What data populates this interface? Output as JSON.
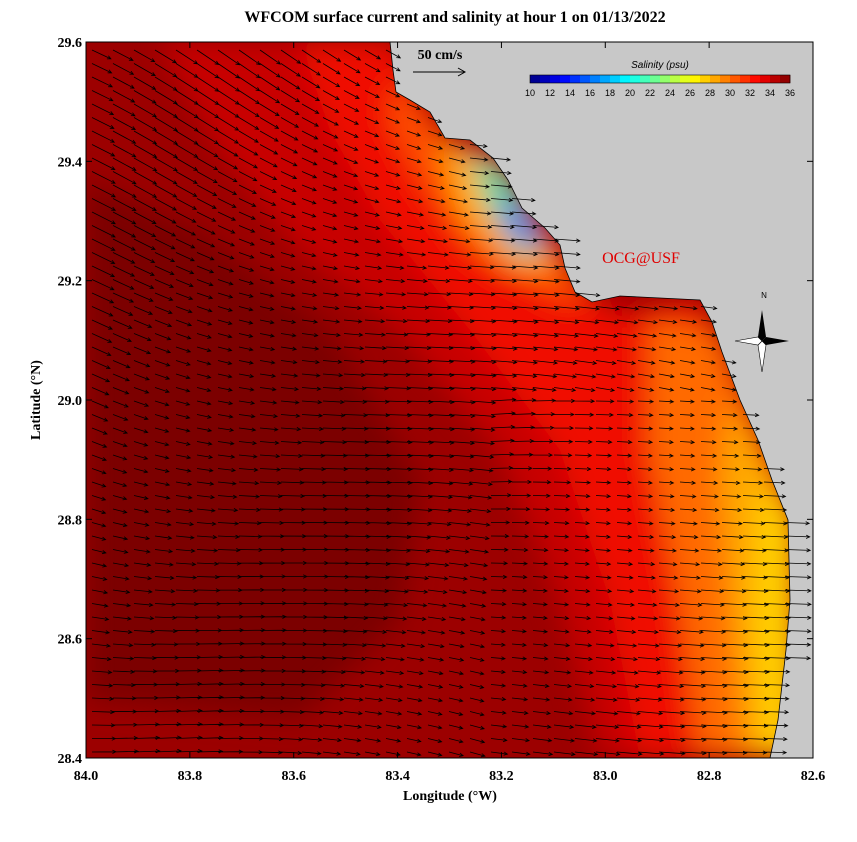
{
  "title": "WFCOM surface current and salinity at hour 1 on 01/13/2022",
  "x_label": "Longitude (°W)",
  "y_label": "Latitude (°N)",
  "xlim": [
    84.0,
    82.6
  ],
  "ylim": [
    28.4,
    29.6
  ],
  "xticks": [
    {
      "value": 84,
      "label": "84.0"
    },
    83.8,
    83.6,
    83.4,
    83.2,
    {
      "value": 83,
      "label": "83.0"
    },
    82.8,
    82.6
  ],
  "yticks": [
    28.4,
    28.6,
    28.8,
    {
      "value": 29,
      "label": "29.0"
    },
    29.2,
    29.4,
    29.6
  ],
  "scale_arrow_label": "50 cm/s",
  "colorbar": {
    "title": "Salinity (psu)",
    "range": [
      10,
      36
    ],
    "ticks": [
      10,
      12,
      14,
      16,
      18,
      20,
      22,
      24,
      26,
      28,
      30,
      32,
      34,
      36
    ]
  },
  "credit": "OCG@USF",
  "compass_label": "N"
}
